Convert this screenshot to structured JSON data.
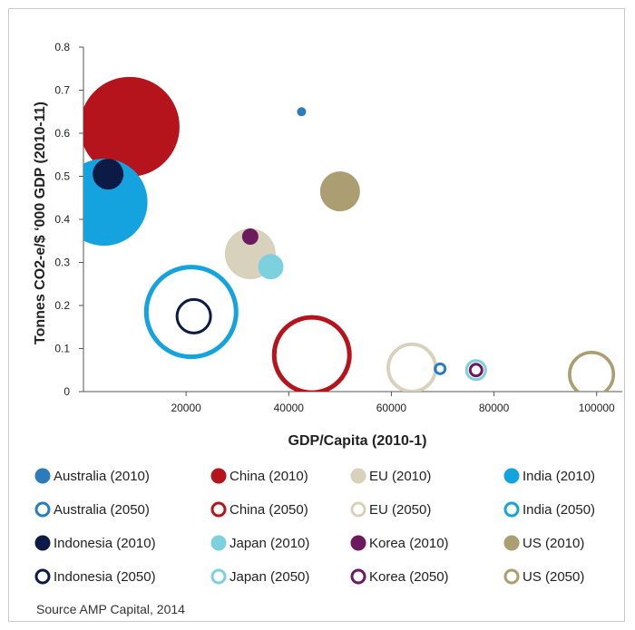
{
  "chart_data": {
    "type": "scatter",
    "variant": "bubble",
    "xlabel": "GDP/Capita (2010-1)",
    "ylabel": "Tonnes CO2-e/$ ‘000 GDP (2010-11)",
    "xlim": [
      0,
      105000
    ],
    "ylim": [
      0,
      0.8
    ],
    "xticks": [
      "20000",
      "40000",
      "60000",
      "80000",
      "100000"
    ],
    "yticks": [
      "0",
      "0.1",
      "0.2",
      "0.3",
      "0.4",
      "0.5",
      "0.6",
      "0.7",
      "0.8"
    ],
    "grid": false,
    "legend_position": "bottom",
    "series": [
      {
        "name": "Australia (2010)",
        "color": "#2b7bbd",
        "style": "filled",
        "x": 42500,
        "y": 0.65,
        "size": 5
      },
      {
        "name": "China (2010)",
        "color": "#b5141d",
        "style": "filled",
        "x": 9000,
        "y": 0.615,
        "size": 55
      },
      {
        "name": "EU (2010)",
        "color": "#d8d2bc",
        "style": "filled",
        "x": 32500,
        "y": 0.32,
        "size": 28
      },
      {
        "name": "India (2010)",
        "color": "#14a3df",
        "style": "filled",
        "x": 4000,
        "y": 0.44,
        "size": 48
      },
      {
        "name": "Australia (2050)",
        "color": "#2b7bbd",
        "style": "ring",
        "x": 69500,
        "y": 0.053,
        "size": 7
      },
      {
        "name": "China (2050)",
        "color": "#b5141d",
        "style": "ring",
        "x": 44500,
        "y": 0.085,
        "size": 44
      },
      {
        "name": "EU (2050)",
        "color": "#d8d2bc",
        "style": "ring",
        "x": 64000,
        "y": 0.055,
        "size": 28
      },
      {
        "name": "India (2050)",
        "color": "#14a3df",
        "style": "ring",
        "x": 21000,
        "y": 0.185,
        "size": 52
      },
      {
        "name": "Indonesia (2010)",
        "color": "#0b1b45",
        "style": "filled",
        "x": 4800,
        "y": 0.505,
        "size": 17
      },
      {
        "name": "Japan (2010)",
        "color": "#7dd0de",
        "style": "filled",
        "x": 36500,
        "y": 0.29,
        "size": 14
      },
      {
        "name": "Korea (2010)",
        "color": "#6b1a5e",
        "style": "filled",
        "x": 32500,
        "y": 0.36,
        "size": 9
      },
      {
        "name": "US (2010)",
        "color": "#aa9e72",
        "style": "filled",
        "x": 50000,
        "y": 0.465,
        "size": 22
      },
      {
        "name": "Indonesia (2050)",
        "color": "#0b1b45",
        "style": "ring",
        "x": 21500,
        "y": 0.175,
        "size": 20
      },
      {
        "name": "Japan (2050)",
        "color": "#7dd0de",
        "style": "ring",
        "x": 76500,
        "y": 0.05,
        "size": 12
      },
      {
        "name": "Korea (2050)",
        "color": "#6b1a5e",
        "style": "ring",
        "x": 76500,
        "y": 0.05,
        "size": 8
      },
      {
        "name": "US (2050)",
        "color": "#aa9e72",
        "style": "ring",
        "x": 99000,
        "y": 0.04,
        "size": 26
      }
    ]
  },
  "source_text": "Source AMP Capital, 2014"
}
